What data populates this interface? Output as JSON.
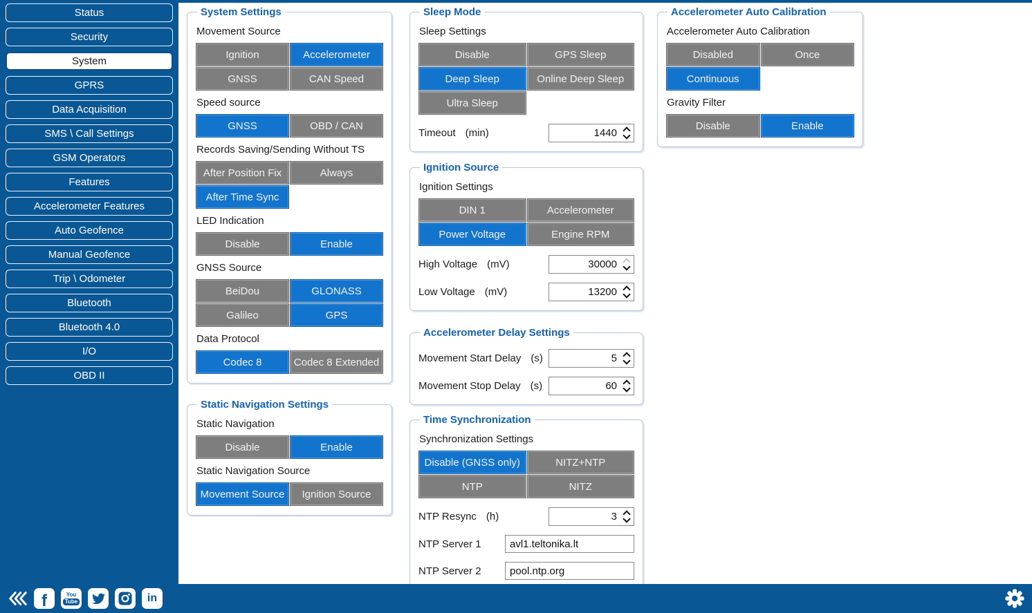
{
  "colors": {
    "primary_blue": "#0a5796",
    "selected_blue": "#1274cc",
    "button_gray": "#7e7e7e",
    "title_blue": "#1562b2"
  },
  "sidebar": {
    "selected": "System",
    "items": [
      "Status",
      "Security",
      "System",
      "GPRS",
      "Data Acquisition",
      "SMS \\ Call Settings",
      "GSM Operators",
      "Features",
      "Accelerometer Features",
      "Auto Geofence",
      "Manual Geofence",
      "Trip \\ Odometer",
      "Bluetooth",
      "Bluetooth 4.0",
      "I/O",
      "OBD II"
    ]
  },
  "panels": [
    {
      "id": "system-settings",
      "title": "System Settings",
      "col": 1,
      "gap": 0,
      "rows": [
        {
          "type": "label",
          "text": "Movement Source"
        },
        {
          "type": "buttons",
          "options": [
            {
              "label": "Ignition",
              "selected": false
            },
            {
              "label": "Accelerometer",
              "selected": true
            },
            {
              "label": "GNSS",
              "selected": false
            },
            {
              "label": "CAN Speed",
              "selected": false
            }
          ]
        },
        {
          "type": "label",
          "text": "Speed source"
        },
        {
          "type": "buttons",
          "options": [
            {
              "label": "GNSS",
              "selected": true
            },
            {
              "label": "OBD / CAN",
              "selected": false
            }
          ]
        },
        {
          "type": "label",
          "text": "Records Saving/Sending Without TS"
        },
        {
          "type": "buttons",
          "options": [
            {
              "label": "After Position Fix",
              "selected": false
            },
            {
              "label": "Always",
              "selected": false
            },
            {
              "label": "After Time Sync",
              "selected": true
            }
          ]
        },
        {
          "type": "label",
          "text": "LED Indication"
        },
        {
          "type": "buttons",
          "options": [
            {
              "label": "Disable",
              "selected": false
            },
            {
              "label": "Enable",
              "selected": true
            }
          ]
        },
        {
          "type": "label",
          "text": "GNSS Source"
        },
        {
          "type": "buttons",
          "options": [
            {
              "label": "BeiDou",
              "selected": false
            },
            {
              "label": "GLONASS",
              "selected": true
            },
            {
              "label": "Galileo",
              "selected": false
            },
            {
              "label": "GPS",
              "selected": true
            }
          ]
        },
        {
          "type": "label",
          "text": "Data Protocol"
        },
        {
          "type": "buttons",
          "options": [
            {
              "label": "Codec 8",
              "selected": true
            },
            {
              "label": "Codec 8 Extended",
              "selected": false
            }
          ]
        }
      ]
    },
    {
      "id": "static-navigation-settings",
      "title": "Static Navigation Settings",
      "col": 1,
      "gap": 22,
      "rows": [
        {
          "type": "label",
          "text": "Static Navigation"
        },
        {
          "type": "buttons",
          "options": [
            {
              "label": "Disable",
              "selected": false
            },
            {
              "label": "Enable",
              "selected": true
            }
          ]
        },
        {
          "type": "label",
          "text": "Static Navigation Source"
        },
        {
          "type": "buttons",
          "options": [
            {
              "label": "Movement Source",
              "selected": true
            },
            {
              "label": "Ignition Source",
              "selected": false
            }
          ]
        }
      ]
    },
    {
      "id": "sleep-mode",
      "title": "Sleep Mode",
      "col": 2,
      "gap": 0,
      "rows": [
        {
          "type": "label",
          "text": "Sleep Settings"
        },
        {
          "type": "buttons",
          "options": [
            {
              "label": "Disable",
              "selected": false
            },
            {
              "label": "GPS Sleep",
              "selected": false
            },
            {
              "label": "Deep Sleep",
              "selected": true
            },
            {
              "label": "Online Deep Sleep",
              "selected": false
            },
            {
              "label": "Ultra Sleep",
              "selected": false
            }
          ]
        },
        {
          "type": "spinner",
          "name": "timeout",
          "label": "Timeout",
          "unit": "(min)",
          "value": "1440",
          "up_disabled": false
        }
      ]
    },
    {
      "id": "ignition-source",
      "title": "Ignition Source",
      "col": 2,
      "gap": 14,
      "rows": [
        {
          "type": "label",
          "text": "Ignition Settings"
        },
        {
          "type": "buttons",
          "options": [
            {
              "label": "DIN 1",
              "selected": false
            },
            {
              "label": "Accelerometer",
              "selected": false
            },
            {
              "label": "Power Voltage",
              "selected": true
            },
            {
              "label": "Engine RPM",
              "selected": false
            }
          ]
        },
        {
          "type": "spinner",
          "name": "high-voltage",
          "label": "High Voltage",
          "unit": "(mV)",
          "value": "30000",
          "up_disabled": true
        },
        {
          "type": "spinner",
          "name": "low-voltage",
          "label": "Low Voltage",
          "unit": "(mV)",
          "value": "13200",
          "up_disabled": false
        }
      ]
    },
    {
      "id": "accelerometer-delay-settings",
      "title": "Accelerometer Delay Settings",
      "col": 2,
      "gap": 23,
      "rows": [
        {
          "type": "spinner",
          "name": "movement-start-delay",
          "label": "Movement Start Delay",
          "unit": "(s)",
          "value": "5",
          "up_disabled": false
        },
        {
          "type": "spinner",
          "name": "movement-stop-delay",
          "label": "Movement Stop Delay",
          "unit": "(s)",
          "value": "60",
          "up_disabled": false
        }
      ]
    },
    {
      "id": "time-synchronization",
      "title": "Time Synchronization",
      "col": 2,
      "gap": 13,
      "rows": [
        {
          "type": "label",
          "text": "Synchronization Settings"
        },
        {
          "type": "buttons",
          "options": [
            {
              "label": "Disable (GNSS only)",
              "selected": true
            },
            {
              "label": "NITZ+NTP",
              "selected": false
            },
            {
              "label": "NTP",
              "selected": false
            },
            {
              "label": "NITZ",
              "selected": false
            }
          ]
        },
        {
          "type": "spinner",
          "name": "ntp-resync",
          "label": "NTP Resync",
          "unit": "(h)",
          "value": "3",
          "up_disabled": false
        },
        {
          "type": "text",
          "name": "ntp-server-1",
          "label": "NTP Server 1",
          "value": "avl1.teltonika.lt"
        },
        {
          "type": "text",
          "name": "ntp-server-2",
          "label": "NTP Server 2",
          "value": "pool.ntp.org"
        }
      ]
    },
    {
      "id": "accelerometer-auto-calibration",
      "title": "Accelerometer Auto Calibration",
      "col": 3,
      "gap": 0,
      "rows": [
        {
          "type": "label",
          "text": "Accelerometer Auto Calibration"
        },
        {
          "type": "buttons",
          "options": [
            {
              "label": "Disabled",
              "selected": false
            },
            {
              "label": "Once",
              "selected": false
            },
            {
              "label": "Continuous",
              "selected": true
            }
          ]
        },
        {
          "type": "label",
          "text": "Gravity Filter"
        },
        {
          "type": "buttons",
          "options": [
            {
              "label": "Disable",
              "selected": false
            },
            {
              "label": "Enable",
              "selected": true
            }
          ]
        }
      ]
    }
  ],
  "footer": {
    "icons": [
      "collapse-sidebar-icon",
      "facebook-icon",
      "youtube-icon",
      "twitter-icon",
      "instagram-icon",
      "linkedin-icon"
    ],
    "right_icon": "settings-gear-icon"
  }
}
